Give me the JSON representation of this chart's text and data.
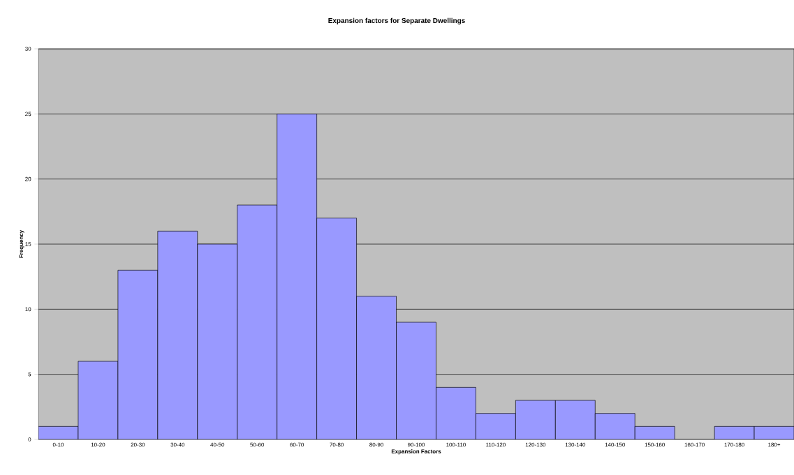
{
  "chart_data": {
    "type": "bar",
    "title": "Expansion factors for Separate Dwellings",
    "xlabel": "Expansion Factors",
    "ylabel": "Frequency",
    "categories": [
      "0-10",
      "10-20",
      "20-30",
      "30-40",
      "40-50",
      "50-60",
      "60-70",
      "70-80",
      "80-90",
      "90-100",
      "100-110",
      "110-120",
      "120-130",
      "130-140",
      "140-150",
      "150-160",
      "160-170",
      "170-180",
      "180+"
    ],
    "values": [
      1,
      6,
      13,
      16,
      15,
      18,
      25,
      17,
      11,
      9,
      4,
      2,
      3,
      3,
      2,
      1,
      0,
      1,
      1
    ],
    "color": "#9999ff",
    "ylim": [
      0,
      30
    ],
    "yticks": [
      0,
      5,
      10,
      15,
      20,
      25,
      30
    ],
    "grid": "y"
  }
}
